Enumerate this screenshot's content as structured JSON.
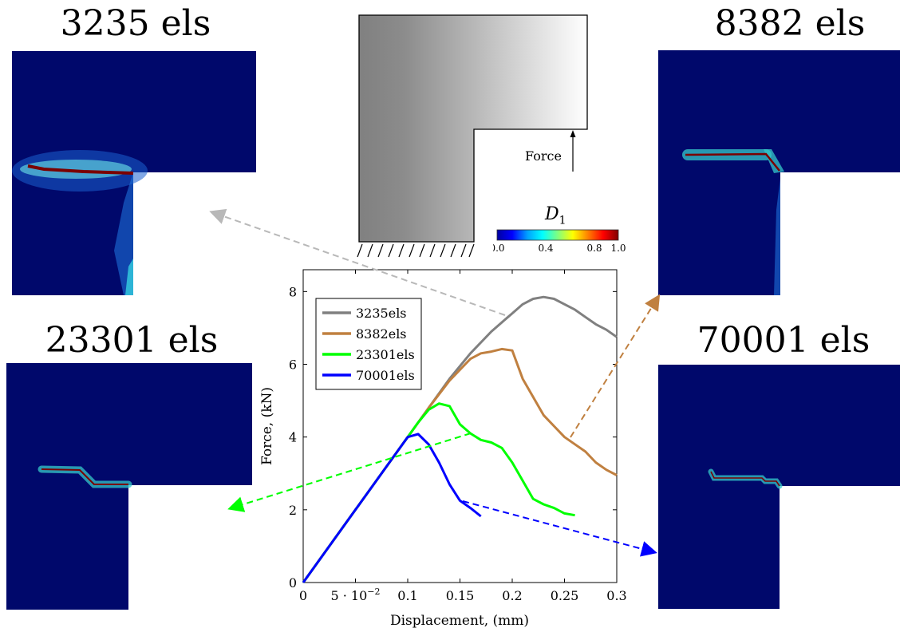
{
  "panels": [
    {
      "title": "3235 els"
    },
    {
      "title": "8382 els"
    },
    {
      "title": "23301 els"
    },
    {
      "title": "70001 els"
    }
  ],
  "schematic": {
    "force_label": "Force"
  },
  "colorbar": {
    "label": "D",
    "label_sub": "1",
    "ticks": [
      "0.0",
      "0.4",
      "0.8",
      "1.0"
    ],
    "colors": [
      "#0000a0",
      "#0000ff",
      "#00a0ff",
      "#00ffff",
      "#80ff80",
      "#ffff00",
      "#ff8000",
      "#ff0000",
      "#800000"
    ]
  },
  "colors": {
    "mesh_bg": "#00086b",
    "crack": "#7a0000",
    "crack_halo": "#35c8c8"
  },
  "chart_data": {
    "type": "line",
    "title": "",
    "xlabel": "Displacement, (mm)",
    "ylabel": "Force, (kN)",
    "xlim": [
      0,
      0.3
    ],
    "ylim": [
      0,
      8.6
    ],
    "xticks": [
      0,
      0.05,
      0.1,
      0.15,
      0.2,
      0.25,
      0.3
    ],
    "xtick_labels": [
      "0",
      "5 · 10",
      "0.1",
      "0.15",
      "0.2",
      "0.25",
      "0.3"
    ],
    "xtick_exponent": "−2",
    "yticks": [
      0,
      2,
      4,
      6,
      8
    ],
    "ytick_labels": [
      "0",
      "2",
      "4",
      "6",
      "8"
    ],
    "legend_position": "top-left",
    "series": [
      {
        "name": "3235els",
        "color": "#808080",
        "x": [
          0,
          0.05,
          0.1,
          0.12,
          0.14,
          0.16,
          0.18,
          0.2,
          0.21,
          0.22,
          0.23,
          0.24,
          0.25,
          0.26,
          0.27,
          0.28,
          0.29,
          0.3
        ],
        "y": [
          0,
          2.0,
          4.0,
          4.8,
          5.6,
          6.3,
          6.9,
          7.4,
          7.65,
          7.8,
          7.85,
          7.8,
          7.65,
          7.5,
          7.3,
          7.1,
          6.95,
          6.75
        ]
      },
      {
        "name": "8382els",
        "color": "#c08040",
        "x": [
          0,
          0.05,
          0.1,
          0.12,
          0.14,
          0.16,
          0.17,
          0.18,
          0.19,
          0.2,
          0.21,
          0.22,
          0.23,
          0.24,
          0.25,
          0.26,
          0.27,
          0.28,
          0.29,
          0.3
        ],
        "y": [
          0,
          2.0,
          4.0,
          4.8,
          5.55,
          6.15,
          6.3,
          6.35,
          6.42,
          6.38,
          5.6,
          5.1,
          4.6,
          4.3,
          4.0,
          3.8,
          3.6,
          3.3,
          3.1,
          2.95
        ]
      },
      {
        "name": "23301els",
        "color": "#00ff00",
        "x": [
          0,
          0.05,
          0.1,
          0.11,
          0.12,
          0.13,
          0.14,
          0.15,
          0.16,
          0.17,
          0.18,
          0.19,
          0.2,
          0.21,
          0.22,
          0.23,
          0.24,
          0.25,
          0.26
        ],
        "y": [
          0,
          2.0,
          4.0,
          4.4,
          4.75,
          4.92,
          4.85,
          4.35,
          4.1,
          3.92,
          3.85,
          3.7,
          3.3,
          2.8,
          2.3,
          2.15,
          2.05,
          1.9,
          1.85
        ]
      },
      {
        "name": "70001els",
        "color": "#0000ff",
        "x": [
          0,
          0.05,
          0.1,
          0.11,
          0.12,
          0.13,
          0.14,
          0.15,
          0.16,
          0.17
        ],
        "y": [
          0,
          2.0,
          4.0,
          4.08,
          3.8,
          3.3,
          2.7,
          2.25,
          2.05,
          1.82
        ]
      }
    ]
  }
}
